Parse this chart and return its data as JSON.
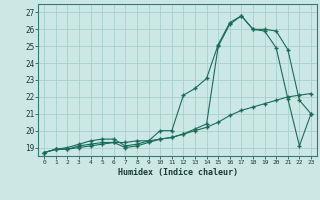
{
  "xlabel": "Humidex (Indice chaleur)",
  "background_color": "#cce8e5",
  "grid_color": "#aacfcc",
  "line_color": "#1a6b5a",
  "xlim": [
    -0.5,
    23.5
  ],
  "ylim": [
    18.5,
    27.5
  ],
  "xticks": [
    0,
    1,
    2,
    3,
    4,
    5,
    6,
    7,
    8,
    9,
    10,
    11,
    12,
    13,
    14,
    15,
    16,
    17,
    18,
    19,
    20,
    21,
    22,
    23
  ],
  "yticks": [
    19,
    20,
    21,
    22,
    23,
    24,
    25,
    26,
    27
  ],
  "line1_x": [
    0,
    1,
    2,
    3,
    4,
    5,
    6,
    7,
    8,
    9,
    10,
    11,
    12,
    13,
    14,
    15,
    16,
    17,
    18,
    19,
    20,
    21,
    22,
    23
  ],
  "line1_y": [
    18.7,
    18.9,
    18.9,
    19.1,
    19.2,
    19.3,
    19.3,
    19.0,
    19.1,
    19.3,
    19.5,
    19.6,
    19.8,
    20.1,
    20.4,
    25.0,
    26.3,
    26.8,
    26.0,
    25.9,
    24.9,
    21.9,
    19.1,
    21.0
  ],
  "line2_x": [
    0,
    1,
    2,
    3,
    4,
    5,
    6,
    7,
    8,
    9,
    10,
    11,
    12,
    13,
    14,
    15,
    16,
    17,
    18,
    19,
    20,
    21,
    22,
    23
  ],
  "line2_y": [
    18.7,
    18.9,
    19.0,
    19.2,
    19.4,
    19.5,
    19.5,
    19.1,
    19.2,
    19.4,
    20.0,
    20.0,
    22.1,
    22.5,
    23.1,
    25.1,
    26.4,
    26.8,
    26.0,
    26.0,
    25.9,
    24.8,
    21.8,
    21.0
  ],
  "line3_x": [
    0,
    1,
    2,
    3,
    4,
    5,
    6,
    7,
    8,
    9,
    10,
    11,
    12,
    13,
    14,
    15,
    16,
    17,
    18,
    19,
    20,
    21,
    22,
    23
  ],
  "line3_y": [
    18.7,
    18.9,
    18.9,
    19.0,
    19.1,
    19.2,
    19.3,
    19.3,
    19.4,
    19.4,
    19.5,
    19.6,
    19.8,
    20.0,
    20.2,
    20.5,
    20.9,
    21.2,
    21.4,
    21.6,
    21.8,
    22.0,
    22.1,
    22.2
  ]
}
